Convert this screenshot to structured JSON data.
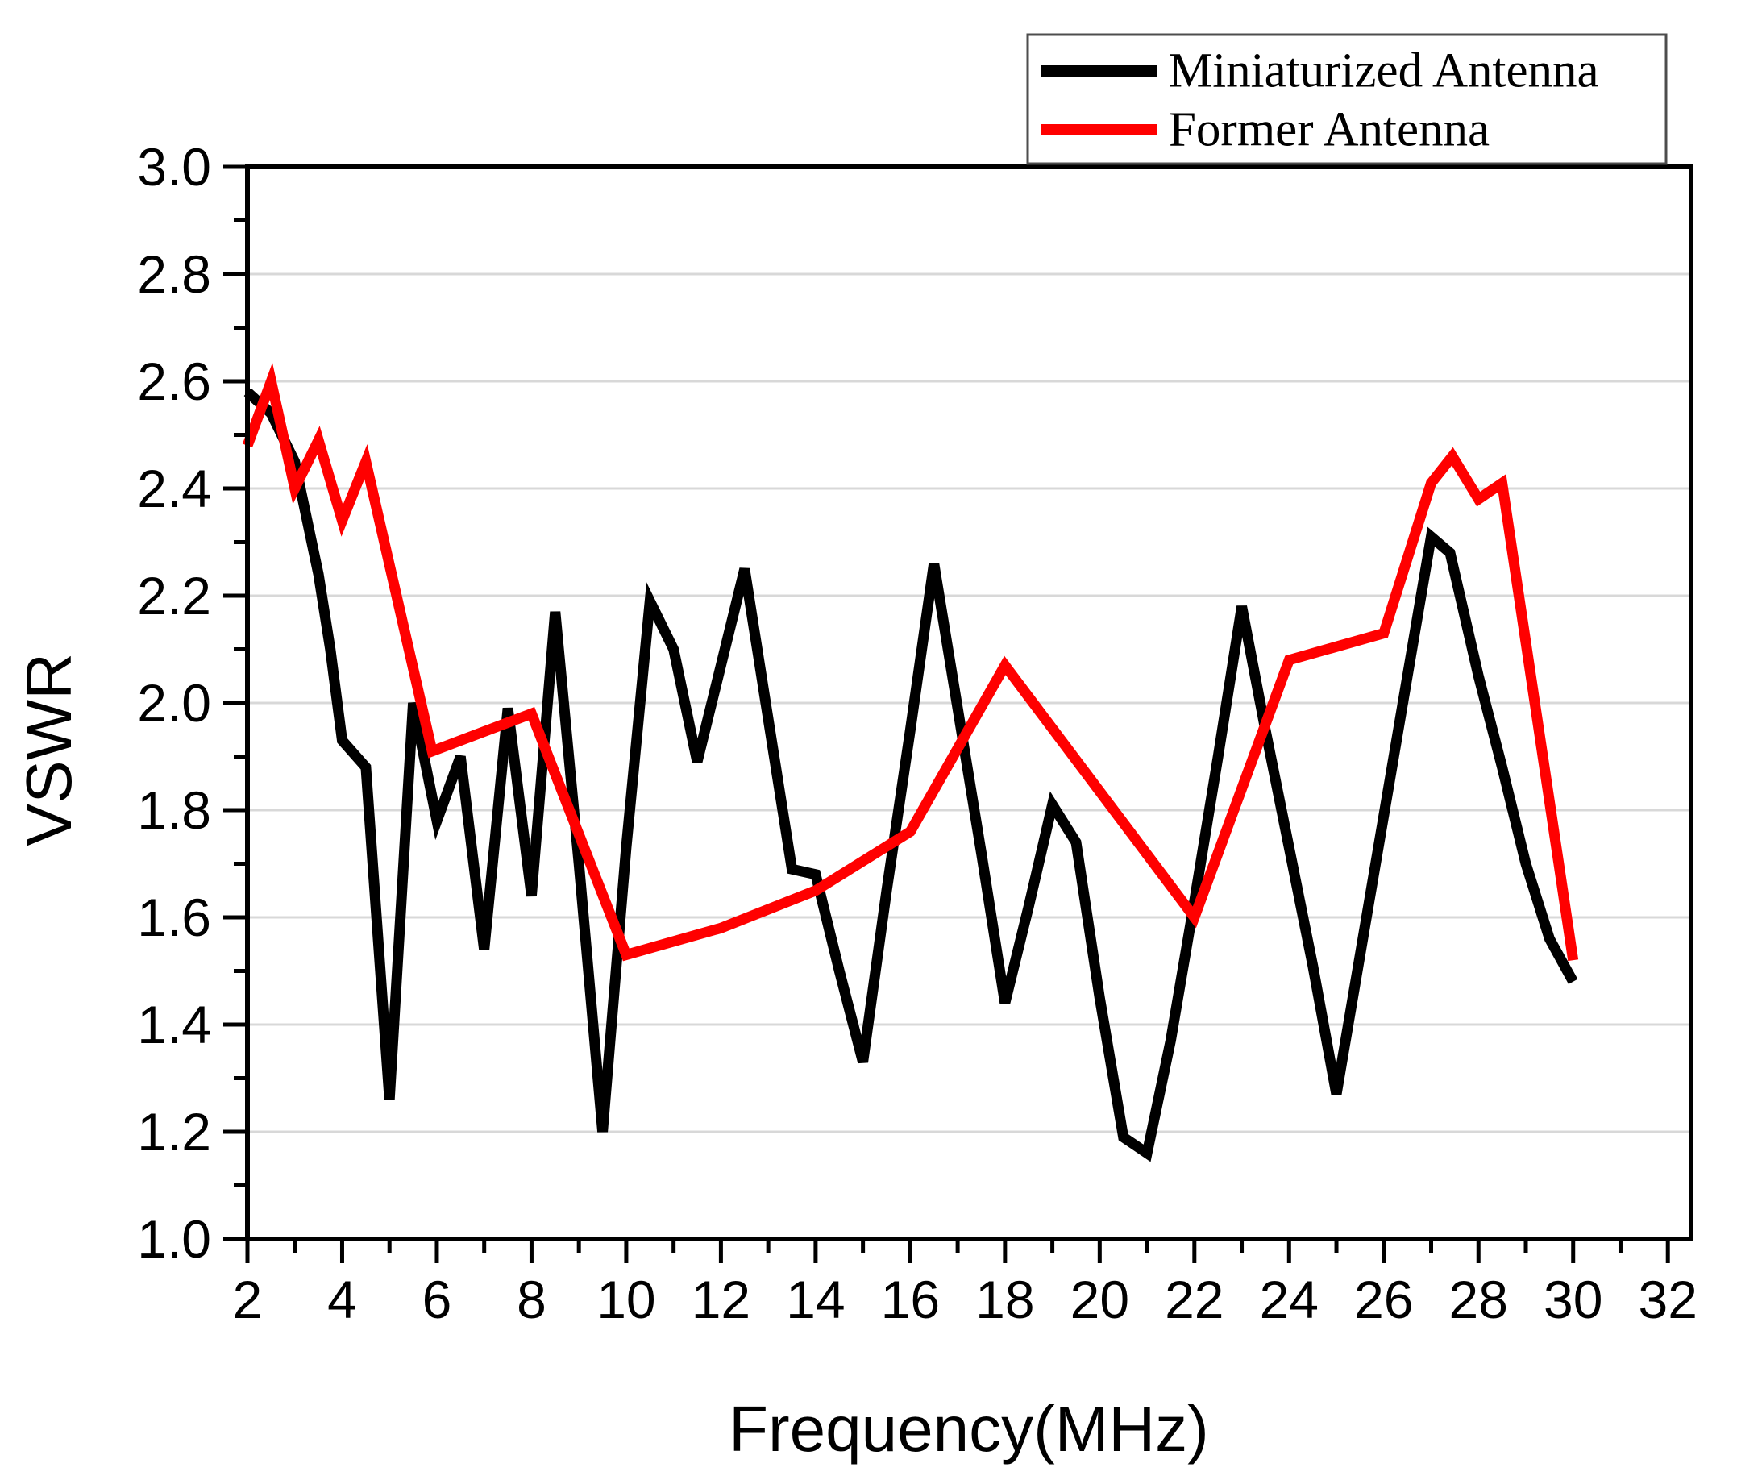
{
  "chart_data": {
    "type": "line",
    "title": "",
    "xlabel": "Frequency(MHz)",
    "ylabel": "VSWR",
    "xlim": [
      2,
      32.49
    ],
    "ylim": [
      1.0,
      3.0
    ],
    "x_ticks": [
      2,
      4,
      6,
      8,
      10,
      12,
      14,
      16,
      18,
      20,
      22,
      24,
      26,
      28,
      30,
      32
    ],
    "y_ticks": [
      1.0,
      1.2,
      1.4,
      1.6,
      1.8,
      2.0,
      2.2,
      2.4,
      2.6,
      2.8,
      3.0
    ],
    "grid": "horizontal-major",
    "gridline_color": "#d8d8d8",
    "axis_color": "#000000",
    "legend_position": "top-right",
    "series": [
      {
        "name": "Miniaturized Antenna",
        "color": "#000000",
        "points": [
          [
            2,
            2.58
          ],
          [
            2.5,
            2.54
          ],
          [
            3,
            2.45
          ],
          [
            3.5,
            2.24
          ],
          [
            3.75,
            2.1
          ],
          [
            4,
            1.93
          ],
          [
            4.5,
            1.88
          ],
          [
            5,
            1.26
          ],
          [
            5.5,
            2.0
          ],
          [
            6,
            1.78
          ],
          [
            6.5,
            1.9
          ],
          [
            7,
            1.54
          ],
          [
            7.5,
            1.99
          ],
          [
            8,
            1.64
          ],
          [
            8.5,
            2.17
          ],
          [
            9,
            1.7
          ],
          [
            9.5,
            1.2
          ],
          [
            10,
            1.73
          ],
          [
            10.5,
            2.19
          ],
          [
            11,
            2.1
          ],
          [
            11.5,
            1.89
          ],
          [
            12,
            2.07
          ],
          [
            12.5,
            2.25
          ],
          [
            13,
            1.97
          ],
          [
            13.5,
            1.69
          ],
          [
            14,
            1.68
          ],
          [
            14.5,
            1.5
          ],
          [
            15,
            1.33
          ],
          [
            15.5,
            1.65
          ],
          [
            16,
            1.95
          ],
          [
            16.5,
            2.26
          ],
          [
            17,
            1.99
          ],
          [
            17.5,
            1.72
          ],
          [
            18,
            1.44
          ],
          [
            18.5,
            1.62
          ],
          [
            19,
            1.81
          ],
          [
            19.5,
            1.74
          ],
          [
            20,
            1.45
          ],
          [
            20.5,
            1.19
          ],
          [
            21,
            1.16
          ],
          [
            21.5,
            1.37
          ],
          [
            22,
            1.63
          ],
          [
            22.5,
            1.9
          ],
          [
            23,
            2.18
          ],
          [
            23.5,
            1.95
          ],
          [
            24,
            1.73
          ],
          [
            24.5,
            1.51
          ],
          [
            25,
            1.27
          ],
          [
            25.5,
            1.53
          ],
          [
            26,
            1.79
          ],
          [
            26.5,
            2.05
          ],
          [
            27,
            2.31
          ],
          [
            27.4,
            2.28
          ],
          [
            28,
            2.05
          ],
          [
            28.5,
            1.88
          ],
          [
            29,
            1.7
          ],
          [
            29.5,
            1.56
          ],
          [
            30,
            1.48
          ]
        ]
      },
      {
        "name": "Former Antenna",
        "color": "#ff0000",
        "points": [
          [
            2,
            2.48
          ],
          [
            2.5,
            2.6
          ],
          [
            3,
            2.4
          ],
          [
            3.5,
            2.49
          ],
          [
            4,
            2.34
          ],
          [
            4.5,
            2.45
          ],
          [
            5.9,
            1.91
          ],
          [
            8,
            1.98
          ],
          [
            10,
            1.53
          ],
          [
            12,
            1.58
          ],
          [
            14,
            1.65
          ],
          [
            16,
            1.76
          ],
          [
            18,
            2.07
          ],
          [
            22,
            1.6
          ],
          [
            24,
            2.08
          ],
          [
            26,
            2.13
          ],
          [
            27,
            2.41
          ],
          [
            27.45,
            2.46
          ],
          [
            28,
            2.38
          ],
          [
            28.5,
            2.41
          ],
          [
            30,
            1.52
          ]
        ]
      }
    ]
  },
  "legend": {
    "entries": [
      {
        "label": "Miniaturized Antenna",
        "color": "#000000"
      },
      {
        "label": "Former Antenna",
        "color": "#ff0000"
      }
    ]
  },
  "axes": {
    "x_title": "Frequency(MHz)",
    "y_title": "VSWR"
  }
}
